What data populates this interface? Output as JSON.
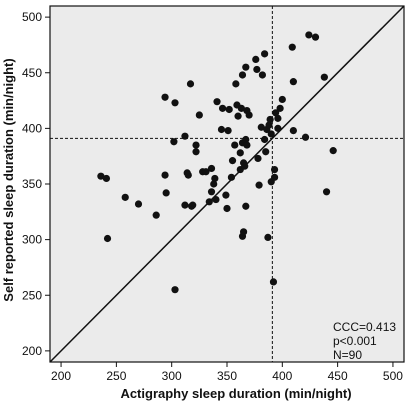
{
  "chart_data": {
    "type": "scatter",
    "xlabel": "Actigraphy sleep duration (min/night)",
    "ylabel": "Self reported sleep duration (min/night)",
    "xlim": [
      190,
      510
    ],
    "ylim": [
      190,
      510
    ],
    "xticks": [
      200,
      250,
      300,
      350,
      400,
      450,
      500
    ],
    "yticks": [
      200,
      250,
      300,
      350,
      400,
      450,
      500
    ],
    "identity_line": {
      "from": [
        190,
        190
      ],
      "to": [
        510,
        510
      ]
    },
    "reference_lines": {
      "x": 391,
      "y": 391
    },
    "annotations": [
      "CCC=0.413",
      "p<0.001",
      "N=90"
    ],
    "grid": false,
    "background": "#ebebeb",
    "point_color": "#111111",
    "points": [
      [
        236,
        357
      ],
      [
        241,
        355
      ],
      [
        242,
        301
      ],
      [
        258,
        338
      ],
      [
        270,
        332
      ],
      [
        286,
        322
      ],
      [
        294,
        428
      ],
      [
        294,
        358
      ],
      [
        295,
        342
      ],
      [
        302,
        388
      ],
      [
        303,
        423
      ],
      [
        303,
        255
      ],
      [
        312,
        393
      ],
      [
        312,
        331
      ],
      [
        314,
        360
      ],
      [
        315,
        358
      ],
      [
        317,
        440
      ],
      [
        318,
        330
      ],
      [
        319,
        331
      ],
      [
        322,
        379
      ],
      [
        322,
        385
      ],
      [
        325,
        412
      ],
      [
        328,
        361
      ],
      [
        331,
        361
      ],
      [
        334,
        334
      ],
      [
        336,
        343
      ],
      [
        336,
        364
      ],
      [
        338,
        350
      ],
      [
        339,
        355
      ],
      [
        340,
        336
      ],
      [
        341,
        424
      ],
      [
        345,
        399
      ],
      [
        346,
        418
      ],
      [
        349,
        340
      ],
      [
        350,
        328
      ],
      [
        351,
        398
      ],
      [
        352,
        417
      ],
      [
        354,
        356
      ],
      [
        355,
        371
      ],
      [
        357,
        385
      ],
      [
        358,
        440
      ],
      [
        359,
        421
      ],
      [
        360,
        411
      ],
      [
        362,
        363
      ],
      [
        362,
        378
      ],
      [
        363,
        418
      ],
      [
        364,
        448
      ],
      [
        364,
        387
      ],
      [
        364,
        303
      ],
      [
        365,
        369
      ],
      [
        365,
        307
      ],
      [
        366,
        366
      ],
      [
        367,
        455
      ],
      [
        367,
        390
      ],
      [
        367,
        330
      ],
      [
        368,
        416
      ],
      [
        368,
        385
      ],
      [
        370,
        412
      ],
      [
        376,
        462
      ],
      [
        377,
        453
      ],
      [
        378,
        373
      ],
      [
        379,
        349
      ],
      [
        381,
        401
      ],
      [
        382,
        448
      ],
      [
        384,
        467
      ],
      [
        384,
        390
      ],
      [
        385,
        379
      ],
      [
        386,
        399
      ],
      [
        387,
        302
      ],
      [
        388,
        403
      ],
      [
        389,
        408
      ],
      [
        390,
        352
      ],
      [
        390,
        395
      ],
      [
        392,
        262
      ],
      [
        393,
        356
      ],
      [
        393,
        363
      ],
      [
        394,
        414
      ],
      [
        396,
        409
      ],
      [
        396,
        400
      ],
      [
        398,
        418
      ],
      [
        400,
        426
      ],
      [
        409,
        473
      ],
      [
        410,
        442
      ],
      [
        410,
        398
      ],
      [
        421,
        392
      ],
      [
        424,
        484
      ],
      [
        430,
        482
      ],
      [
        438,
        446
      ],
      [
        440,
        343
      ],
      [
        446,
        380
      ]
    ]
  }
}
